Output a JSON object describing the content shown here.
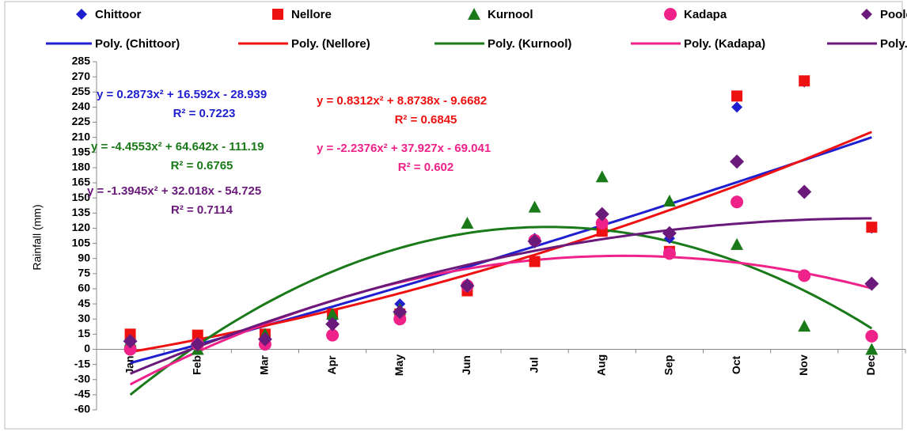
{
  "chart_data": {
    "type": "scatter",
    "y_label": "Rainfall (mm)",
    "categories": [
      "Jan",
      "Feb",
      "Mar",
      "Apr",
      "May",
      "Jun",
      "Jul",
      "Aug",
      "Sep",
      "Oct",
      "Nov",
      "Dec"
    ],
    "series": [
      {
        "name": "Chittoor",
        "color": "#1f1fd0",
        "marker": "diamond",
        "values": [
          10,
          5,
          12,
          30,
          45,
          65,
          110,
          120,
          110,
          240,
          265,
          120
        ]
      },
      {
        "name": "Nellore",
        "color": "#ee1111",
        "marker": "square",
        "values": [
          15,
          14,
          15,
          35,
          35,
          58,
          87,
          117,
          97,
          251,
          266,
          121
        ]
      },
      {
        "name": "Kurnool",
        "color": "#1a7a1a",
        "marker": "triangle",
        "values": [
          8,
          0,
          15,
          35,
          40,
          125,
          141,
          171,
          147,
          104,
          23,
          0
        ]
      },
      {
        "name": "Kadapa",
        "color": "#ee2288",
        "marker": "circle",
        "values": [
          0,
          5,
          5,
          14,
          30,
          63,
          108,
          125,
          95,
          146,
          73,
          13
        ]
      },
      {
        "name": "Pooled",
        "color": "#6a1a7a",
        "marker": "diamond",
        "values": [
          8,
          5,
          10,
          25,
          37,
          63,
          107,
          134,
          115,
          186,
          156,
          65
        ]
      }
    ],
    "trendlines": [
      {
        "name": "Poly. (Chittoor)",
        "color": "#1f1fd0",
        "equation": "y = 0.2873x² + 16.592x - 28.939",
        "r2": "R² = 0.7223"
      },
      {
        "name": "Poly. (Nellore)",
        "color": "#ee1111",
        "equation": "y = 0.8312x² + 8.8738x - 9.6682",
        "r2": "R² = 0.6845"
      },
      {
        "name": "Poly. (Kurnool)",
        "color": "#1a7a1a",
        "equation": "y = -4.4553x² + 64.642x - 111.19",
        "r2": "R² = 0.6765"
      },
      {
        "name": "Poly. (Kadapa)",
        "color": "#ee2288",
        "equation": "y = -2.2376x² + 37.927x - 69.041",
        "r2": "R² = 0.602"
      },
      {
        "name": "Poly. (Pooled)",
        "color": "#6a1a7a",
        "equation": "y = -1.3945x² + 32.018x - 54.725",
        "r2": "R² = 0.7114"
      }
    ],
    "ylim": [
      -60,
      285
    ],
    "yticks": [
      -60,
      -45,
      -30,
      -15,
      0,
      15,
      30,
      45,
      60,
      75,
      90,
      105,
      120,
      135,
      150,
      165,
      180,
      195,
      210,
      225,
      240,
      255,
      270,
      285
    ]
  }
}
